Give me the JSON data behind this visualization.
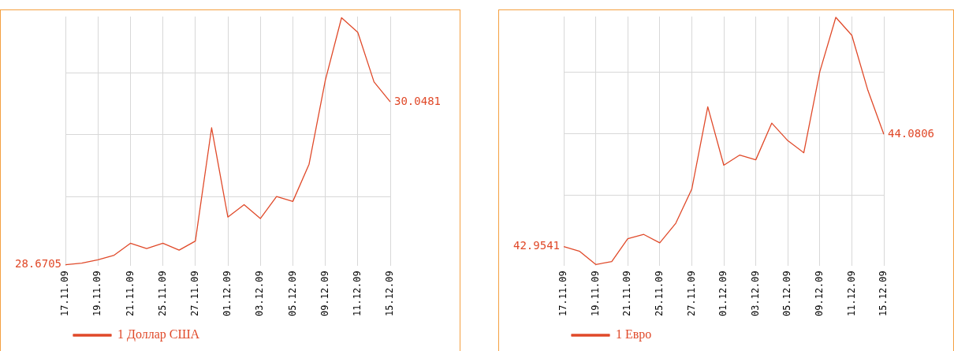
{
  "chart_data": [
    {
      "type": "line",
      "categories": [
        "17.11.09",
        null,
        "19.11.09",
        null,
        "21.11.09",
        null,
        "25.11.09",
        null,
        "27.11.09",
        null,
        "01.12.09",
        null,
        "03.12.09",
        null,
        "05.12.09",
        null,
        "09.12.09",
        null,
        "11.12.09",
        null,
        "15.12.09"
      ],
      "series": [
        {
          "name": "1 Доллар США",
          "color": "#e04a2a",
          "values": [
            28.6705,
            28.684,
            28.713,
            28.751,
            28.852,
            28.807,
            28.852,
            28.794,
            28.871,
            29.829,
            29.074,
            29.179,
            29.061,
            29.248,
            29.206,
            29.521,
            30.23,
            30.76,
            30.637,
            30.217,
            30.0481
          ],
          "value_labels": [
            "28.6705",
            null,
            null,
            null,
            null,
            null,
            null,
            null,
            null,
            null,
            null,
            null,
            null,
            null,
            null,
            null,
            null,
            null,
            null,
            null,
            "30.0481"
          ]
        }
      ],
      "ylim": [
        28.66,
        30.77
      ],
      "yticks": [
        {
          "value": 29.248,
          "label": null
        },
        {
          "value": 29.77,
          "label": null
        },
        {
          "value": 30.291,
          "label": null
        }
      ],
      "grid": true,
      "legend": "bottom left",
      "marker": "none",
      "line_style": "solid"
    },
    {
      "type": "line",
      "categories": [
        "17.11.09",
        null,
        "19.11.09",
        null,
        "21.11.09",
        null,
        "25.11.09",
        null,
        "27.11.09",
        null,
        "01.12.09",
        null,
        "03.12.09",
        null,
        "05.12.09",
        null,
        "09.12.09",
        null,
        "11.12.09",
        null,
        "15.12.09"
      ],
      "series": [
        {
          "name": "1 Евро",
          "color": "#e04a2a",
          "values": [
            42.9541,
            42.906,
            42.775,
            42.804,
            43.034,
            43.076,
            42.992,
            43.188,
            43.53,
            44.356,
            43.77,
            43.872,
            43.824,
            44.192,
            44.016,
            43.895,
            44.708,
            45.252,
            45.072,
            44.522,
            44.0806
          ],
          "value_labels": [
            "42.9541",
            null,
            null,
            null,
            null,
            null,
            null,
            null,
            null,
            null,
            null,
            null,
            null,
            null,
            null,
            null,
            null,
            null,
            null,
            null,
            "44.0806"
          ]
        }
      ],
      "ylim": [
        42.76,
        45.26
      ],
      "yticks": [
        {
          "value": 43.466,
          "label": null
        },
        {
          "value": 44.087,
          "label": null
        },
        {
          "value": 44.704,
          "label": null
        }
      ],
      "grid": true,
      "legend": "bottom left",
      "marker": "none",
      "line_style": "solid"
    }
  ]
}
